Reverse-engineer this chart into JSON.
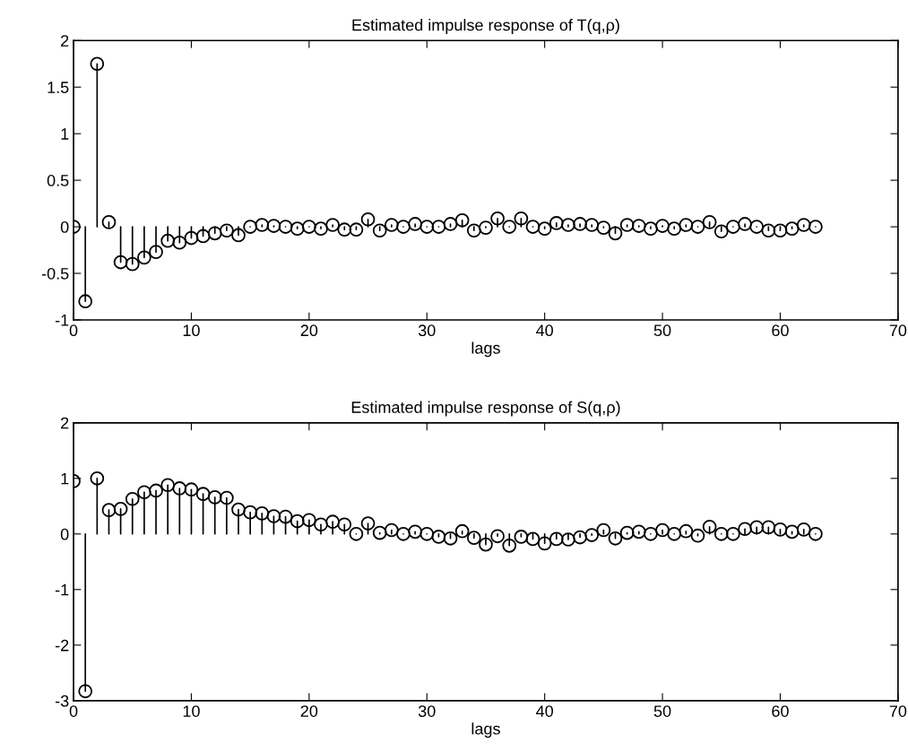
{
  "chart_data": [
    {
      "type": "lollipop",
      "title": "Estimated impulse response of T(q,ρ)",
      "xlabel": "lags",
      "marker": "circle",
      "grid": false,
      "x": [
        0,
        1,
        2,
        3,
        4,
        5,
        6,
        7,
        8,
        9,
        10,
        11,
        12,
        13,
        14,
        15,
        16,
        17,
        18,
        19,
        20,
        21,
        22,
        23,
        24,
        25,
        26,
        27,
        28,
        29,
        30,
        31,
        32,
        33,
        34,
        35,
        36,
        37,
        38,
        39,
        40,
        41,
        42,
        43,
        44,
        45,
        46,
        47,
        48,
        49,
        50,
        51,
        52,
        53,
        54,
        55,
        56,
        57,
        58,
        59,
        60,
        61,
        62,
        63
      ],
      "series": [
        {
          "color": "#000000",
          "values": [
            0,
            -0.8,
            1.75,
            0.05,
            -0.38,
            -0.4,
            -0.33,
            -0.27,
            -0.15,
            -0.17,
            -0.12,
            -0.1,
            -0.07,
            -0.04,
            -0.09,
            0,
            0.02,
            0.01,
            0,
            -0.02,
            0,
            -0.02,
            0.02,
            -0.03,
            -0.03,
            0.08,
            -0.04,
            0.02,
            0,
            0.03,
            0,
            0,
            0.03,
            0.07,
            -0.04,
            -0.01,
            0.09,
            0,
            0.09,
            0,
            -0.02,
            0.04,
            0.02,
            0.03,
            0.02,
            -0.01,
            -0.07,
            0.02,
            0.01,
            -0.02,
            0.01,
            -0.02,
            0.02,
            0,
            0.05,
            -0.05,
            0,
            0.03,
            0,
            -0.04,
            -0.04,
            -0.02,
            0.02,
            0
          ]
        }
      ],
      "xlim": [
        0,
        70
      ],
      "xticks": [
        0,
        10,
        20,
        30,
        40,
        50,
        60,
        70
      ],
      "ylim": [
        -1,
        2
      ],
      "yticks": [
        -1,
        -0.5,
        0,
        0.5,
        1,
        1.5,
        2
      ]
    },
    {
      "type": "lollipop",
      "title": "Estimated impulse response of S(q,ρ)",
      "xlabel": "lags",
      "marker": "circle",
      "grid": false,
      "x": [
        0,
        1,
        2,
        3,
        4,
        5,
        6,
        7,
        8,
        9,
        10,
        11,
        12,
        13,
        14,
        15,
        16,
        17,
        18,
        19,
        20,
        21,
        22,
        23,
        24,
        25,
        26,
        27,
        28,
        29,
        30,
        31,
        32,
        33,
        34,
        35,
        36,
        37,
        38,
        39,
        40,
        41,
        42,
        43,
        44,
        45,
        46,
        47,
        48,
        49,
        50,
        51,
        52,
        53,
        54,
        55,
        56,
        57,
        58,
        59,
        60,
        61,
        62,
        63
      ],
      "series": [
        {
          "color": "#000000",
          "values": [
            0.95,
            -2.83,
            1.0,
            0.43,
            0.45,
            0.63,
            0.75,
            0.78,
            0.88,
            0.82,
            0.8,
            0.72,
            0.66,
            0.65,
            0.44,
            0.39,
            0.37,
            0.32,
            0.31,
            0.23,
            0.25,
            0.17,
            0.22,
            0.17,
            0,
            0.19,
            0.02,
            0.07,
            0,
            0.04,
            0,
            -0.05,
            -0.08,
            0.05,
            -0.07,
            -0.19,
            -0.04,
            -0.21,
            -0.05,
            -0.09,
            -0.17,
            -0.09,
            -0.1,
            -0.06,
            -0.02,
            0.07,
            -0.08,
            0.02,
            0.04,
            0,
            0.07,
            0,
            0.05,
            -0.03,
            0.13,
            0,
            0,
            0.09,
            0.12,
            0.12,
            0.08,
            0.04,
            0.08,
            0
          ]
        }
      ],
      "xlim": [
        0,
        70
      ],
      "xticks": [
        0,
        10,
        20,
        30,
        40,
        50,
        60,
        70
      ],
      "ylim": [
        -3,
        2
      ],
      "yticks": [
        -3,
        -2,
        -1,
        0,
        1,
        2
      ]
    }
  ]
}
